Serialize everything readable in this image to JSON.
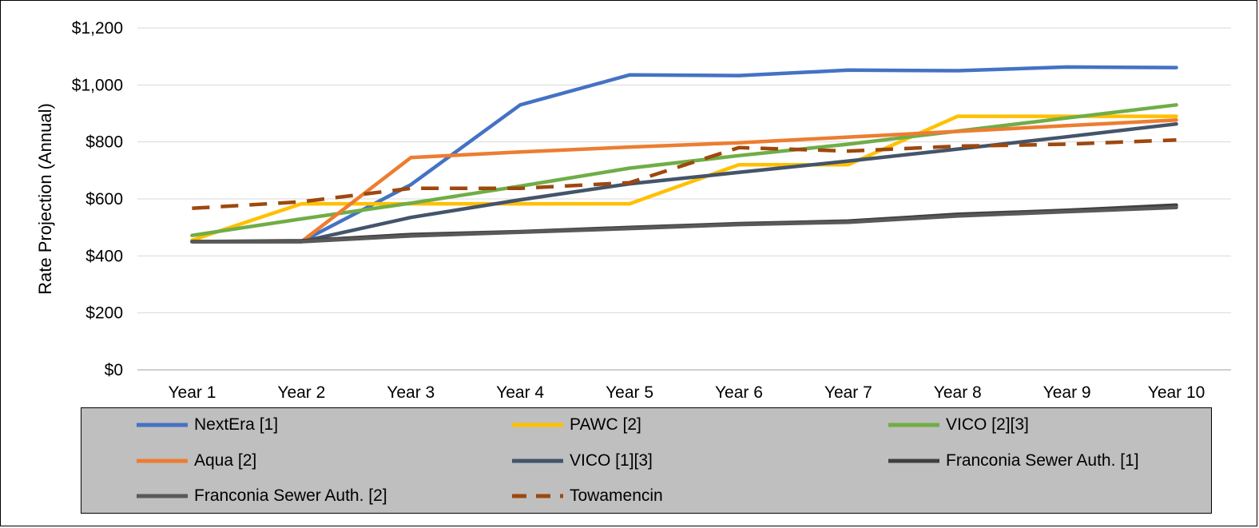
{
  "chart_data": {
    "type": "line",
    "title": "",
    "xlabel": "",
    "ylabel": "Rate Projection (Annual)",
    "categories": [
      "Year 1",
      "Year 2",
      "Year 3",
      "Year 4",
      "Year 5",
      "Year 6",
      "Year 7",
      "Year 8",
      "Year 9",
      "Year 10"
    ],
    "ylim": [
      0,
      1200
    ],
    "yticks": [
      0,
      200,
      400,
      600,
      800,
      1000,
      1200
    ],
    "ytick_labels": [
      "$0",
      "$200",
      "$400",
      "$600",
      "$800",
      "$1,000",
      "$1,200"
    ],
    "grid": true,
    "legend_position": "bottom",
    "series": [
      {
        "name": "NextEra [1]",
        "color": "#4472c4",
        "dashed": false,
        "values": [
          450,
          450,
          650,
          930,
          1035,
          1033,
          1052,
          1050,
          1063,
          1061
        ]
      },
      {
        "name": "PAWC [2]",
        "color": "#ffc000",
        "dashed": false,
        "values": [
          455,
          583,
          583,
          583,
          583,
          720,
          720,
          890,
          890,
          890
        ]
      },
      {
        "name": "VICO [2][3]",
        "color": "#70ad47",
        "dashed": false,
        "values": [
          472,
          530,
          585,
          645,
          708,
          752,
          792,
          838,
          884,
          930
        ]
      },
      {
        "name": "Aqua [2]",
        "color": "#ed7d31",
        "dashed": false,
        "values": [
          450,
          450,
          745,
          765,
          782,
          797,
          817,
          837,
          857,
          877
        ]
      },
      {
        "name": "VICO [1][3]",
        "color": "#44546a",
        "dashed": false,
        "values": [
          450,
          450,
          535,
          597,
          653,
          693,
          733,
          775,
          818,
          863
        ]
      },
      {
        "name": "Franconia Sewer Auth. [1]",
        "color": "#404040",
        "dashed": false,
        "values": [
          450,
          453,
          475,
          485,
          500,
          513,
          522,
          546,
          560,
          578
        ]
      },
      {
        "name": "Franconia Sewer Auth. [2]",
        "color": "#595959",
        "dashed": false,
        "values": [
          450,
          450,
          470,
          483,
          496,
          510,
          518,
          540,
          555,
          570
        ]
      },
      {
        "name": "Towamencin",
        "color": "#9e480e",
        "dashed": true,
        "values": [
          567,
          590,
          637,
          637,
          657,
          780,
          768,
          785,
          792,
          807
        ]
      }
    ]
  }
}
